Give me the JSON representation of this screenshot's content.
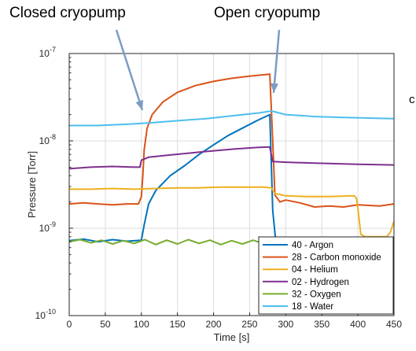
{
  "annotations": {
    "closed": "Closed cryopump",
    "open": "Open cryopump",
    "edge_text": "c"
  },
  "arrow_color": "#7b9cc4",
  "chart_data": {
    "type": "line",
    "title": "",
    "xlabel": "Time [s]",
    "ylabel": "Pressure [Torr]",
    "xlim": [
      0,
      450
    ],
    "ylim": [
      1e-10,
      1e-07
    ],
    "yscale": "log",
    "grid": true,
    "legend_position": "bottom-right",
    "x_ticks": [
      "0",
      "50",
      "100",
      "150",
      "200",
      "250",
      "300",
      "350",
      "400",
      "450"
    ],
    "x_tick_values": [
      0,
      50,
      100,
      150,
      200,
      250,
      300,
      350,
      400,
      450
    ],
    "y_ticks": [
      {
        "value": 1e-10,
        "base": "10",
        "exp": "-10"
      },
      {
        "value": 1e-09,
        "base": "10",
        "exp": "-9"
      },
      {
        "value": 1e-08,
        "base": "10",
        "exp": "-8"
      },
      {
        "value": 1e-07,
        "base": "10",
        "exp": "-7"
      }
    ],
    "series": [
      {
        "name": "40 - Argon",
        "color": "#0072bd",
        "points": [
          [
            0,
            7.2e-10
          ],
          [
            20,
            7.5e-10
          ],
          [
            40,
            7e-10
          ],
          [
            60,
            7.4e-10
          ],
          [
            80,
            7.1e-10
          ],
          [
            92,
            7.2e-10
          ],
          [
            100,
            7.3e-10
          ],
          [
            104,
            1.1e-09
          ],
          [
            110,
            1.9e-09
          ],
          [
            120,
            2.7e-09
          ],
          [
            140,
            4e-09
          ],
          [
            160,
            5.2e-09
          ],
          [
            180,
            7e-09
          ],
          [
            200,
            9e-09
          ],
          [
            220,
            1.15e-08
          ],
          [
            240,
            1.4e-08
          ],
          [
            260,
            1.7e-08
          ],
          [
            278,
            2e-08
          ],
          [
            282,
            1.6e-09
          ],
          [
            288,
            5e-10
          ],
          [
            300,
            3.3e-10
          ],
          [
            330,
            3.2e-10
          ],
          [
            360,
            3.1e-10
          ],
          [
            400,
            3e-10
          ],
          [
            450,
            3e-10
          ]
        ]
      },
      {
        "name": "28 - Carbon monoxide",
        "color": "#d95319",
        "points": [
          [
            0,
            1.9e-09
          ],
          [
            20,
            1.95e-09
          ],
          [
            40,
            1.9e-09
          ],
          [
            60,
            1.85e-09
          ],
          [
            80,
            1.9e-09
          ],
          [
            96,
            1.9e-09
          ],
          [
            100,
            2.3e-09
          ],
          [
            102,
            4e-09
          ],
          [
            104,
            8e-09
          ],
          [
            108,
            1.4e-08
          ],
          [
            115,
            2e-08
          ],
          [
            130,
            2.8e-08
          ],
          [
            150,
            3.6e-08
          ],
          [
            175,
            4.3e-08
          ],
          [
            200,
            4.8e-08
          ],
          [
            225,
            5.2e-08
          ],
          [
            250,
            5.5e-08
          ],
          [
            278,
            5.8e-08
          ],
          [
            282,
            1e-08
          ],
          [
            285,
            2.4e-09
          ],
          [
            292,
            2e-09
          ],
          [
            300,
            2.1e-09
          ],
          [
            320,
            1.95e-09
          ],
          [
            340,
            1.75e-09
          ],
          [
            360,
            1.8e-09
          ],
          [
            380,
            1.75e-09
          ],
          [
            400,
            1.85e-09
          ],
          [
            430,
            1.8e-09
          ],
          [
            450,
            1.9e-09
          ]
        ]
      },
      {
        "name": "04 - Helium",
        "color": "#edb120",
        "points": [
          [
            0,
            2.8e-09
          ],
          [
            30,
            2.8e-09
          ],
          [
            60,
            2.85e-09
          ],
          [
            90,
            2.8e-09
          ],
          [
            120,
            2.85e-09
          ],
          [
            150,
            2.9e-09
          ],
          [
            180,
            2.9e-09
          ],
          [
            210,
            2.95e-09
          ],
          [
            240,
            2.95e-09
          ],
          [
            270,
            2.95e-09
          ],
          [
            280,
            2.9e-09
          ],
          [
            285,
            2.5e-09
          ],
          [
            300,
            2.35e-09
          ],
          [
            330,
            2.3e-09
          ],
          [
            360,
            2.3e-09
          ],
          [
            395,
            2.35e-09
          ],
          [
            398,
            2.2e-09
          ],
          [
            400,
            1.7e-09
          ],
          [
            404,
            8.5e-10
          ],
          [
            410,
            8e-10
          ],
          [
            430,
            8e-10
          ],
          [
            440,
            8e-10
          ],
          [
            445,
            9e-10
          ],
          [
            450,
            1.2e-09
          ]
        ]
      },
      {
        "name": "02 - Hydrogen",
        "color": "#7e2f8e",
        "points": [
          [
            0,
            4.8e-09
          ],
          [
            30,
            5e-09
          ],
          [
            60,
            5.1e-09
          ],
          [
            90,
            5e-09
          ],
          [
            98,
            5e-09
          ],
          [
            100,
            6e-09
          ],
          [
            110,
            6.5e-09
          ],
          [
            140,
            6.9e-09
          ],
          [
            170,
            7.3e-09
          ],
          [
            200,
            7.7e-09
          ],
          [
            230,
            8.1e-09
          ],
          [
            260,
            8.4e-09
          ],
          [
            278,
            8.5e-09
          ],
          [
            282,
            5.8e-09
          ],
          [
            300,
            5.7e-09
          ],
          [
            330,
            5.6e-09
          ],
          [
            360,
            5.5e-09
          ],
          [
            400,
            5.4e-09
          ],
          [
            450,
            5.3e-09
          ]
        ]
      },
      {
        "name": "32 - Oxygen",
        "color": "#77ac30",
        "points": [
          [
            0,
            7e-10
          ],
          [
            15,
            7.4e-10
          ],
          [
            30,
            6.8e-10
          ],
          [
            45,
            7.3e-10
          ],
          [
            60,
            6.6e-10
          ],
          [
            75,
            7.2e-10
          ],
          [
            90,
            6.7e-10
          ],
          [
            105,
            7.4e-10
          ],
          [
            120,
            6.5e-10
          ],
          [
            135,
            7.3e-10
          ],
          [
            150,
            6.6e-10
          ],
          [
            165,
            7.4e-10
          ],
          [
            180,
            6.7e-10
          ],
          [
            195,
            7.3e-10
          ],
          [
            210,
            6.5e-10
          ],
          [
            225,
            7.2e-10
          ],
          [
            240,
            6.6e-10
          ],
          [
            255,
            7.3e-10
          ],
          [
            270,
            6.6e-10
          ],
          [
            280,
            7e-10
          ],
          [
            285,
            7.2e-10
          ],
          [
            295,
            6.8e-10
          ],
          [
            310,
            7.3e-10
          ],
          [
            325,
            6.8e-10
          ],
          [
            330,
            7e-10
          ]
        ]
      },
      {
        "name": "18 - Water",
        "color": "#4dbeee",
        "points": [
          [
            0,
            1.5e-08
          ],
          [
            40,
            1.5e-08
          ],
          [
            80,
            1.55e-08
          ],
          [
            110,
            1.6e-08
          ],
          [
            150,
            1.7e-08
          ],
          [
            190,
            1.8e-08
          ],
          [
            230,
            1.95e-08
          ],
          [
            265,
            2.1e-08
          ],
          [
            280,
            2.2e-08
          ],
          [
            300,
            2e-08
          ],
          [
            340,
            1.9e-08
          ],
          [
            380,
            1.85e-08
          ],
          [
            420,
            1.82e-08
          ],
          [
            450,
            1.8e-08
          ]
        ]
      }
    ]
  }
}
